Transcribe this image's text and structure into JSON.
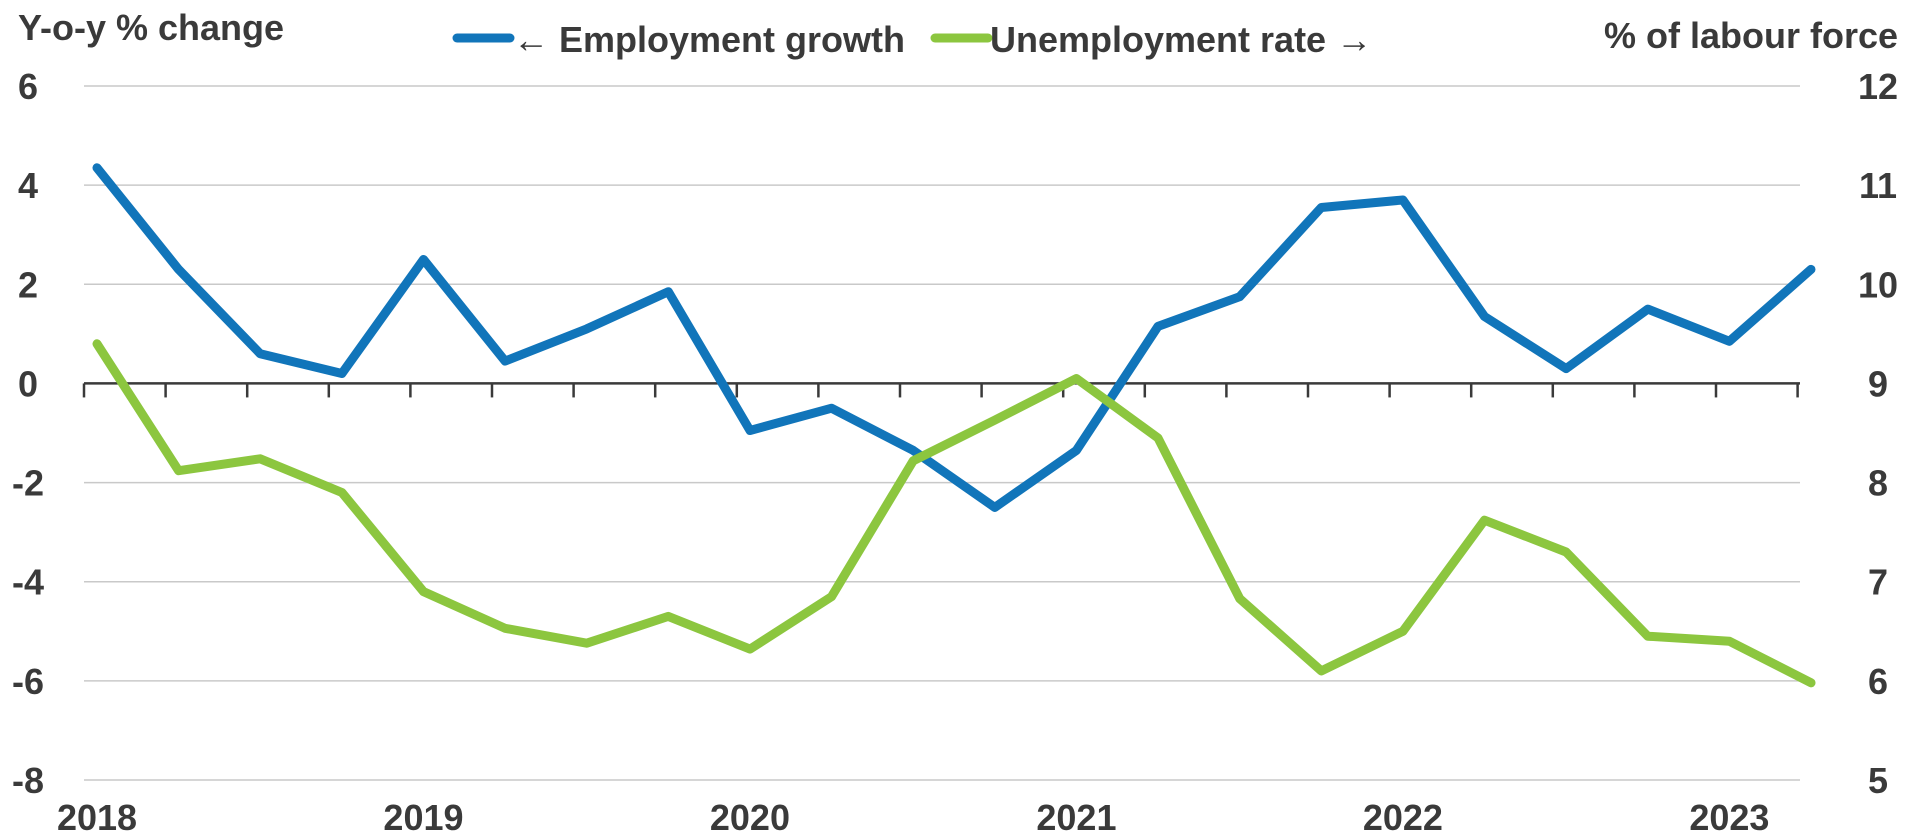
{
  "chart_data": {
    "type": "line",
    "left_axis_title": "Y-o-y % change",
    "right_axis_title": "% of labour force",
    "left_ylim": [
      -8,
      6
    ],
    "left_ticks": [
      6,
      4,
      2,
      0,
      -2,
      -4,
      -6,
      -8
    ],
    "right_ylim": [
      5,
      12
    ],
    "right_ticks": [
      12,
      11,
      10,
      9,
      8,
      7,
      6,
      5
    ],
    "x_labels": [
      "2018",
      "2019",
      "2020",
      "2021",
      "2022",
      "2023"
    ],
    "grid": true,
    "legend_position": "top-center",
    "x": [
      "2018-Q1",
      "2018-Q2",
      "2018-Q3",
      "2018-Q4",
      "2019-Q1",
      "2019-Q2",
      "2019-Q3",
      "2019-Q4",
      "2020-Q1",
      "2020-Q2",
      "2020-Q3",
      "2020-Q4",
      "2021-Q1",
      "2021-Q2",
      "2021-Q3",
      "2021-Q4",
      "2022-Q1",
      "2022-Q2",
      "2022-Q3",
      "2022-Q4",
      "2023-Q1",
      "2023-Q2"
    ],
    "series": [
      {
        "name": "← Employment growth",
        "axis": "left",
        "color": "#1175BA",
        "values": [
          4.35,
          2.3,
          0.6,
          0.2,
          2.5,
          0.45,
          1.1,
          1.85,
          -0.95,
          -0.5,
          -1.35,
          -2.5,
          -1.35,
          1.15,
          1.75,
          3.55,
          3.7,
          1.35,
          0.3,
          1.5,
          0.85,
          2.3
        ]
      },
      {
        "name": "Unemployment rate →",
        "axis": "right",
        "color": "#8CC63F",
        "values": [
          9.4,
          8.12,
          8.24,
          7.9,
          6.9,
          6.53,
          6.38,
          6.65,
          6.32,
          6.85,
          8.22,
          8.63,
          9.05,
          8.45,
          6.83,
          6.1,
          6.5,
          7.62,
          7.3,
          6.45,
          6.4,
          5.98
        ]
      }
    ]
  }
}
